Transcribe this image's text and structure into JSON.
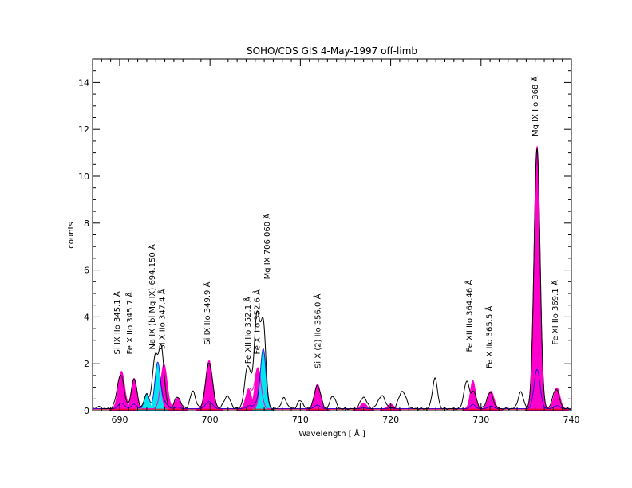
{
  "chart_data": {
    "type": "line",
    "title": "SOHO/CDS GIS  4-May-1997 off-limb",
    "xlabel": "Wavelength [ Å ]",
    "ylabel": "counts",
    "xlim": [
      687,
      740
    ],
    "ylim": [
      0,
      15
    ],
    "x_ticks": [
      690,
      700,
      710,
      720,
      730,
      740
    ],
    "y_ticks": [
      0,
      2,
      4,
      6,
      8,
      10,
      12,
      14
    ],
    "x_minor_step": 1,
    "y_minor_step": 0.5,
    "colors": {
      "observed": "#000000",
      "magenta_fill": "#ff00cc",
      "cyan_fill": "#00e5ee",
      "blue": "#0000cc",
      "red_continuum": "#ff0000"
    },
    "baseline": 0.08,
    "observed_lines": [
      {
        "x": 687.5,
        "a": 0.08,
        "w": 0.4
      },
      {
        "x": 690.1,
        "a": 1.45,
        "w": 0.38
      },
      {
        "x": 691.6,
        "a": 1.3,
        "w": 0.3
      },
      {
        "x": 693.0,
        "a": 0.6,
        "w": 0.3
      },
      {
        "x": 693.9,
        "a": 2.05,
        "w": 0.28
      },
      {
        "x": 694.6,
        "a": 2.6,
        "w": 0.32
      },
      {
        "x": 696.4,
        "a": 0.5,
        "w": 0.35
      },
      {
        "x": 698.1,
        "a": 0.75,
        "w": 0.3
      },
      {
        "x": 699.9,
        "a": 1.95,
        "w": 0.38
      },
      {
        "x": 701.9,
        "a": 0.55,
        "w": 0.35
      },
      {
        "x": 704.2,
        "a": 1.85,
        "w": 0.35
      },
      {
        "x": 705.2,
        "a": 4.0,
        "w": 0.3
      },
      {
        "x": 705.9,
        "a": 3.6,
        "w": 0.28
      },
      {
        "x": 708.2,
        "a": 0.45,
        "w": 0.3
      },
      {
        "x": 710.0,
        "a": 0.35,
        "w": 0.3
      },
      {
        "x": 711.9,
        "a": 1.0,
        "w": 0.35
      },
      {
        "x": 713.6,
        "a": 0.55,
        "w": 0.3
      },
      {
        "x": 717.0,
        "a": 0.5,
        "w": 0.35
      },
      {
        "x": 719.0,
        "a": 0.55,
        "w": 0.4
      },
      {
        "x": 721.3,
        "a": 0.75,
        "w": 0.4
      },
      {
        "x": 724.9,
        "a": 1.3,
        "w": 0.28
      },
      {
        "x": 728.4,
        "a": 1.15,
        "w": 0.3
      },
      {
        "x": 729.2,
        "a": 0.7,
        "w": 0.3
      },
      {
        "x": 731.0,
        "a": 0.7,
        "w": 0.35
      },
      {
        "x": 734.4,
        "a": 0.7,
        "w": 0.3
      },
      {
        "x": 736.2,
        "a": 11.1,
        "w": 0.33
      },
      {
        "x": 738.3,
        "a": 0.85,
        "w": 0.35
      }
    ],
    "magenta_lines": [
      {
        "x": 690.2,
        "a": 1.6,
        "w": 0.35
      },
      {
        "x": 691.6,
        "a": 1.3,
        "w": 0.3
      },
      {
        "x": 694.9,
        "a": 1.9,
        "w": 0.35
      },
      {
        "x": 696.4,
        "a": 0.45,
        "w": 0.3
      },
      {
        "x": 699.9,
        "a": 2.05,
        "w": 0.38
      },
      {
        "x": 704.3,
        "a": 0.85,
        "w": 0.33
      },
      {
        "x": 705.3,
        "a": 1.75,
        "w": 0.35
      },
      {
        "x": 711.9,
        "a": 1.05,
        "w": 0.33
      },
      {
        "x": 717.0,
        "a": 0.25,
        "w": 0.3
      },
      {
        "x": 720.0,
        "a": 0.2,
        "w": 0.3
      },
      {
        "x": 729.1,
        "a": 1.2,
        "w": 0.28
      },
      {
        "x": 731.1,
        "a": 0.75,
        "w": 0.33
      },
      {
        "x": 736.2,
        "a": 11.2,
        "w": 0.33
      },
      {
        "x": 738.4,
        "a": 0.9,
        "w": 0.33
      }
    ],
    "cyan_lines": [
      {
        "x": 693.0,
        "a": 0.65,
        "w": 0.28
      },
      {
        "x": 694.2,
        "a": 1.95,
        "w": 0.3
      },
      {
        "x": 705.9,
        "a": 2.5,
        "w": 0.3
      }
    ],
    "line_labels": [
      {
        "x": 690.0,
        "y": 2.4,
        "text": "Si IX IIo 345.1  Å"
      },
      {
        "x": 691.4,
        "y": 2.4,
        "text": "Fe X IIo 345.7  Å"
      },
      {
        "x": 693.9,
        "y": 2.6,
        "text": "Na IX (bl Mg IX) 694.150 Å"
      },
      {
        "x": 695.0,
        "y": 2.6,
        "text": "Si X IIo 347.4 Å"
      },
      {
        "x": 700.0,
        "y": 2.8,
        "text": "Si IX   IIo 349.9 Å"
      },
      {
        "x": 704.5,
        "y": 2.0,
        "text": "Fe XII IIo  352.1 Å"
      },
      {
        "x": 705.5,
        "y": 2.4,
        "text": "Fe XI  IIo  352.6 Å"
      },
      {
        "x": 706.6,
        "y": 5.6,
        "text": "Mg IX  706.060 Å"
      },
      {
        "x": 712.2,
        "y": 1.8,
        "text": "Si X (2) IIo 356.0 Å"
      },
      {
        "x": 729.0,
        "y": 2.5,
        "text": "Fe XII IIo  364.46 Å"
      },
      {
        "x": 731.2,
        "y": 1.8,
        "text": "Fe  X IIo  365.5  Å"
      },
      {
        "x": 736.3,
        "y": 11.7,
        "text": "Mg IX IIo   368 Å"
      },
      {
        "x": 738.5,
        "y": 2.8,
        "text": "Fe XI IIo   369.1 Å"
      }
    ]
  }
}
